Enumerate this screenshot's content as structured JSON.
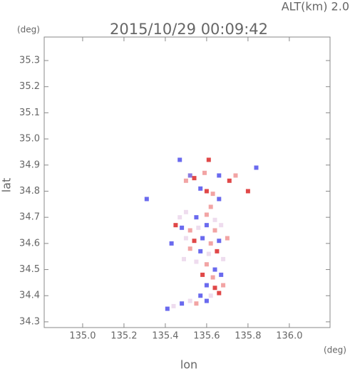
{
  "chart_data": {
    "type": "scatter",
    "title": "2015/10/29 00:09:42",
    "annotation": "ALT(km) 2.0",
    "y_unit": "(deg)",
    "x_unit": "(deg)",
    "x_label": "lon",
    "y_label": "lat",
    "xlim": [
      134.814,
      136.197
    ],
    "ylim": [
      34.278,
      35.39
    ],
    "xticks": [
      {
        "value": 135.0,
        "label": "135.0"
      },
      135.2,
      135.4,
      135.6,
      135.8,
      {
        "value": 136.0,
        "label": "136.0"
      }
    ],
    "yticks": [
      35.3,
      35.2,
      35.1,
      {
        "value": 35.0,
        "label": "35.0"
      },
      34.9,
      34.8,
      34.7,
      34.6,
      34.5,
      34.4,
      34.3
    ],
    "x": [
      135.47,
      135.61,
      135.52,
      135.5,
      135.54,
      135.59,
      135.66,
      135.71,
      135.74,
      135.8,
      135.84,
      135.57,
      135.6,
      135.63,
      135.66,
      135.31,
      135.5,
      135.55,
      135.6,
      135.64,
      135.45,
      135.48,
      135.52,
      135.56,
      135.6,
      135.64,
      135.67,
      135.5,
      135.54,
      135.58,
      135.62,
      135.66,
      135.52,
      135.57,
      135.61,
      135.65,
      135.43,
      135.55,
      135.6,
      135.64,
      135.58,
      135.63,
      135.67,
      135.6,
      135.64,
      135.68,
      135.57,
      135.62,
      135.66,
      135.55,
      135.6,
      135.48,
      135.44,
      135.41,
      135.52,
      135.68,
      135.47,
      135.62,
      135.7,
      135.49
    ],
    "values": [
      34.92,
      34.92,
      34.86,
      34.84,
      34.85,
      34.87,
      34.86,
      34.84,
      34.86,
      34.8,
      34.89,
      34.81,
      34.8,
      34.79,
      34.77,
      34.77,
      34.72,
      34.7,
      34.71,
      34.69,
      34.67,
      34.66,
      34.65,
      34.66,
      34.67,
      34.65,
      34.67,
      34.62,
      34.61,
      34.62,
      34.6,
      34.61,
      34.58,
      34.57,
      34.56,
      34.57,
      34.6,
      34.53,
      34.52,
      34.5,
      34.48,
      34.47,
      34.48,
      34.44,
      34.43,
      34.44,
      34.4,
      34.4,
      34.41,
      34.37,
      34.38,
      34.37,
      34.36,
      34.35,
      34.38,
      34.54,
      34.7,
      34.74,
      34.62,
      34.54
    ],
    "point_colors": [
      "#6a6aee",
      "#e04848",
      "#8a7ae0",
      "#f2a4a4",
      "#e04848",
      "#f2a4a4",
      "#6a6aee",
      "#e04848",
      "#f2a4a4",
      "#e04848",
      "#6a6aee",
      "#6a6aee",
      "#e04848",
      "#f2a4a4",
      "#6a6aee",
      "#6a6aee",
      "#eedcee",
      "#6a6aee",
      "#f2a4a4",
      "#eedcee",
      "#e04848",
      "#6a6aee",
      "#f2a4a4",
      "#eedcee",
      "#6a6aee",
      "#f2a4a4",
      "#eedcee",
      "#eedcee",
      "#e04848",
      "#6a6aee",
      "#f2a4a4",
      "#6a6aee",
      "#f2a4a4",
      "#6a6aee",
      "#eedcee",
      "#e04848",
      "#6a6aee",
      "#eedcee",
      "#f2a4a4",
      "#6a6aee",
      "#e04848",
      "#f2a4a4",
      "#6a6aee",
      "#6a6aee",
      "#e04848",
      "#f2a4a4",
      "#6a6aee",
      "#eedcee",
      "#e04848",
      "#f2a4a4",
      "#6a6aee",
      "#6a6aee",
      "#eedcee",
      "#6a6aee",
      "#eedcee",
      "#eedcee",
      "#eedcee",
      "#f2a4a4",
      "#f2a4a4",
      "#eedcee"
    ]
  }
}
